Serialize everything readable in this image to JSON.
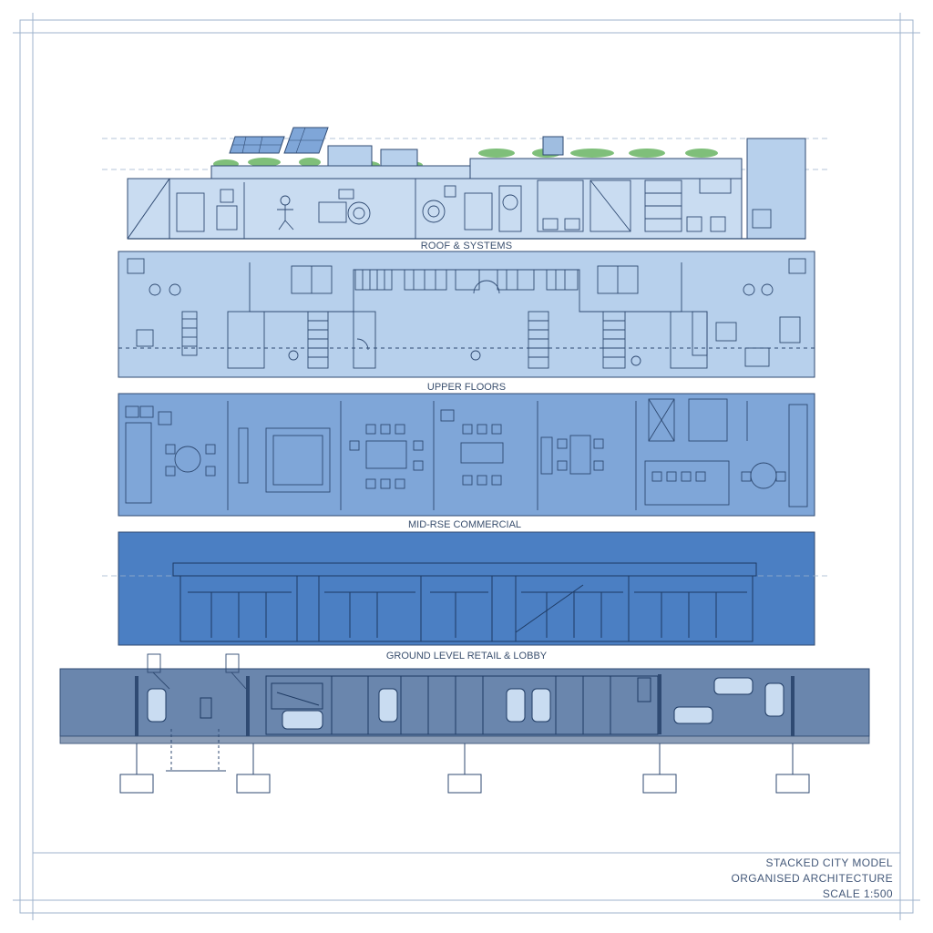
{
  "sections": [
    {
      "id": "roof",
      "label": "ROOF & SYSTEMS",
      "fill": "#c9dcf1"
    },
    {
      "id": "upper",
      "label": "UPPER FLOORS",
      "fill": "#b7d0ec"
    },
    {
      "id": "mid",
      "label": "MID-RSE COMMERCIAL",
      "fill": "#7fa6d8"
    },
    {
      "id": "ground",
      "label": "GROUND LEVEL RETAIL & LOBBY",
      "fill": "#4b7fc3"
    },
    {
      "id": "basement",
      "label": "",
      "fill": "#6a86ad"
    }
  ],
  "title_block": {
    "line1": "STACKED CITY MODEL",
    "line2": "ORGANISED ARCHITECTURE",
    "line3": "SCALE 1:500"
  },
  "colors": {
    "border": "#9fb3cc",
    "linework": "#2f4a72",
    "label_text": "#3a4f6e",
    "greenery": "#7fbf7a"
  }
}
